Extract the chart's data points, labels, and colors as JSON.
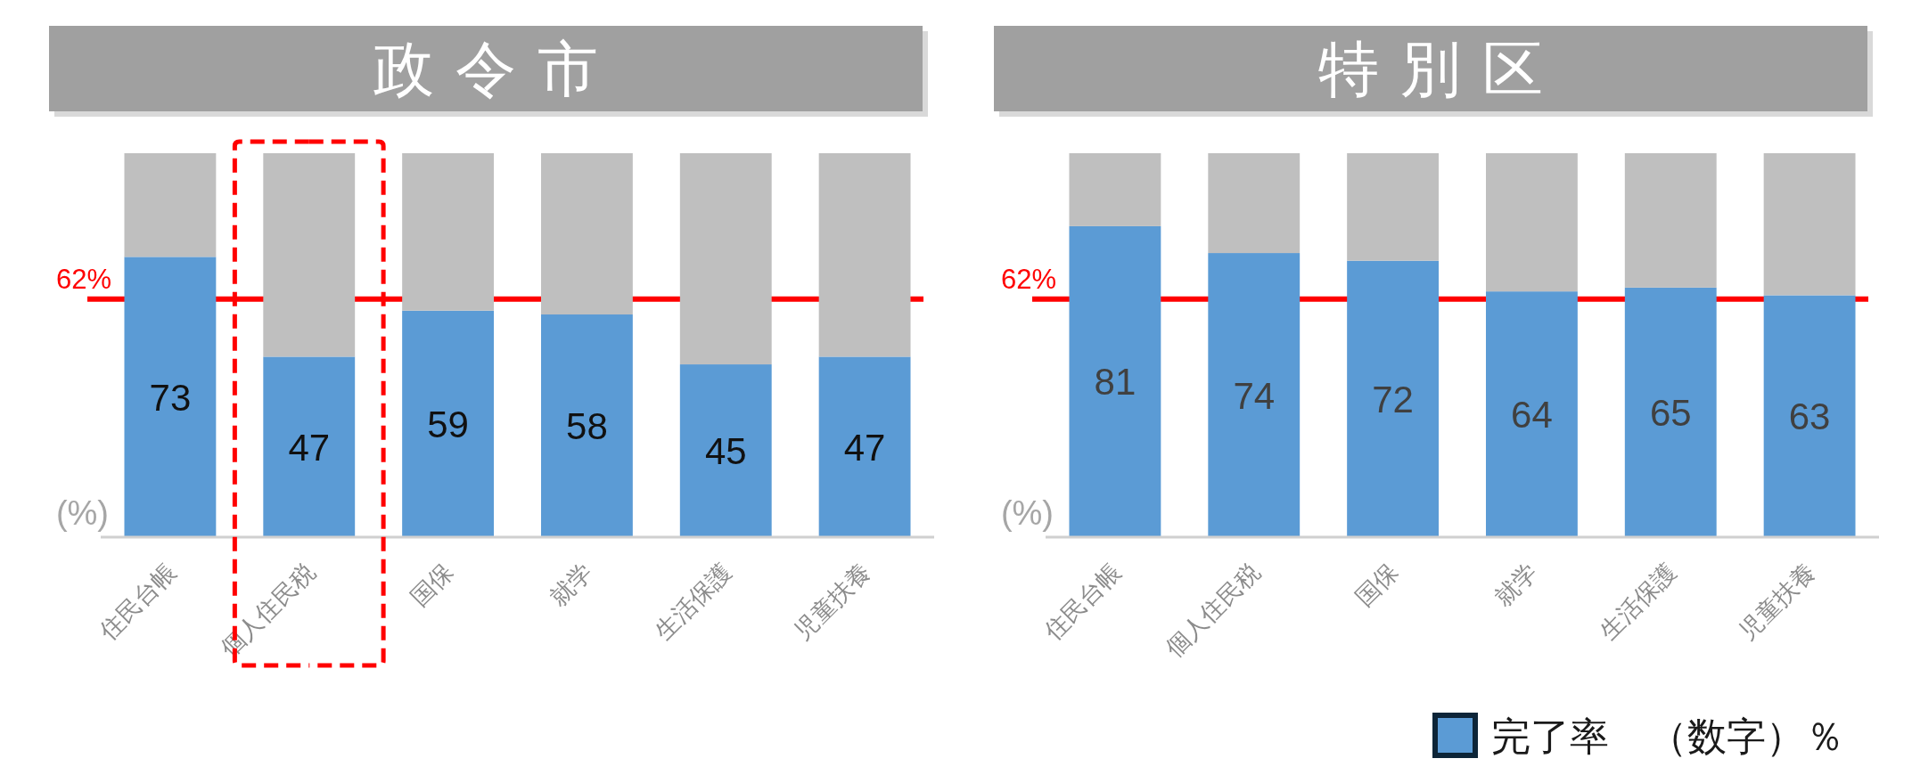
{
  "chart_data": [
    {
      "type": "bar",
      "title": "政令市",
      "ylabel": "(%)",
      "categories": [
        "住民台帳",
        "個人住民税",
        "国保",
        "就学",
        "生活保護",
        "児童扶養"
      ],
      "stacked": true,
      "ylim": [
        0,
        100
      ],
      "tick_labels": "x",
      "series": [
        {
          "color": "#5b9bd5",
          "values": [
            73,
            47,
            59,
            58,
            45,
            47
          ],
          "value_labels": [
            "73",
            "47",
            "59",
            "58",
            "45",
            "47"
          ]
        },
        {
          "color": "#bfbfbf",
          "values": [
            27,
            53,
            41,
            42,
            55,
            53
          ]
        }
      ],
      "ref_lines": [
        {
          "axis": "y",
          "value": 62,
          "label": "62%",
          "color": "#ff0000"
        }
      ]
    },
    {
      "type": "bar",
      "title": "特別区",
      "ylabel": "(%)",
      "categories": [
        "住民台帳",
        "個人住民税",
        "国保",
        "就学",
        "生活保護",
        "児童扶養"
      ],
      "stacked": true,
      "ylim": [
        0,
        100
      ],
      "tick_labels": "x",
      "series": [
        {
          "name": "完了率　（数字）％",
          "color": "#5b9bd5",
          "values": [
            81,
            74,
            72,
            64,
            65,
            63
          ],
          "value_labels": [
            "81",
            "74",
            "72",
            "64",
            "65",
            "63"
          ]
        },
        {
          "color": "#bfbfbf",
          "values": [
            19,
            26,
            28,
            36,
            35,
            37
          ]
        }
      ],
      "ref_lines": [
        {
          "axis": "y",
          "value": 62,
          "label": "62%",
          "color": "#ff0000"
        }
      ],
      "legend": "bottom right"
    }
  ]
}
